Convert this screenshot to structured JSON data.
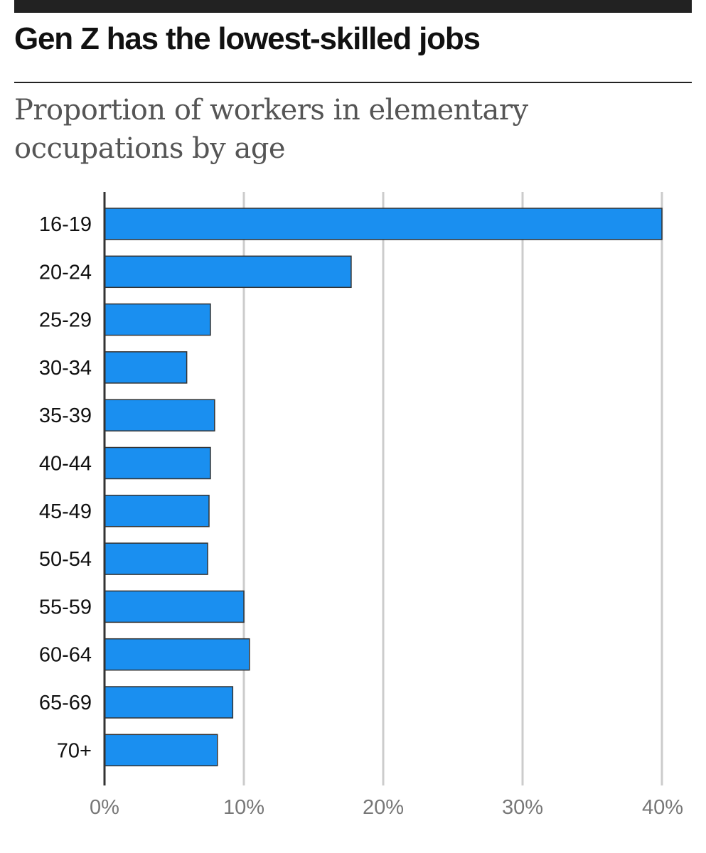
{
  "header": {
    "title": "Gen Z has the lowest-skilled jobs",
    "subtitle": "Proportion of workers in elementary occupations by age"
  },
  "colors": {
    "bar_fill": "#1a8ff0",
    "bar_stroke": "#333333",
    "gridline": "#cccccc",
    "axis": "#333333"
  },
  "chart_data": {
    "type": "bar",
    "orientation": "horizontal",
    "title": "Gen Z has the lowest-skilled jobs",
    "subtitle": "Proportion of workers in elementary occupations by age",
    "categories": [
      "16-19",
      "20-24",
      "25-29",
      "30-34",
      "35-39",
      "40-44",
      "45-49",
      "50-54",
      "55-59",
      "60-64",
      "65-69",
      "70+"
    ],
    "values": [
      40.0,
      17.7,
      7.6,
      5.9,
      7.9,
      7.6,
      7.5,
      7.4,
      10.0,
      10.4,
      9.2,
      8.1
    ],
    "xlim": [
      0,
      40
    ],
    "ticks": [
      0,
      10,
      20,
      30,
      40
    ],
    "tick_labels": [
      "0%",
      "10%",
      "20%",
      "30%",
      "40%"
    ],
    "grid": true
  }
}
